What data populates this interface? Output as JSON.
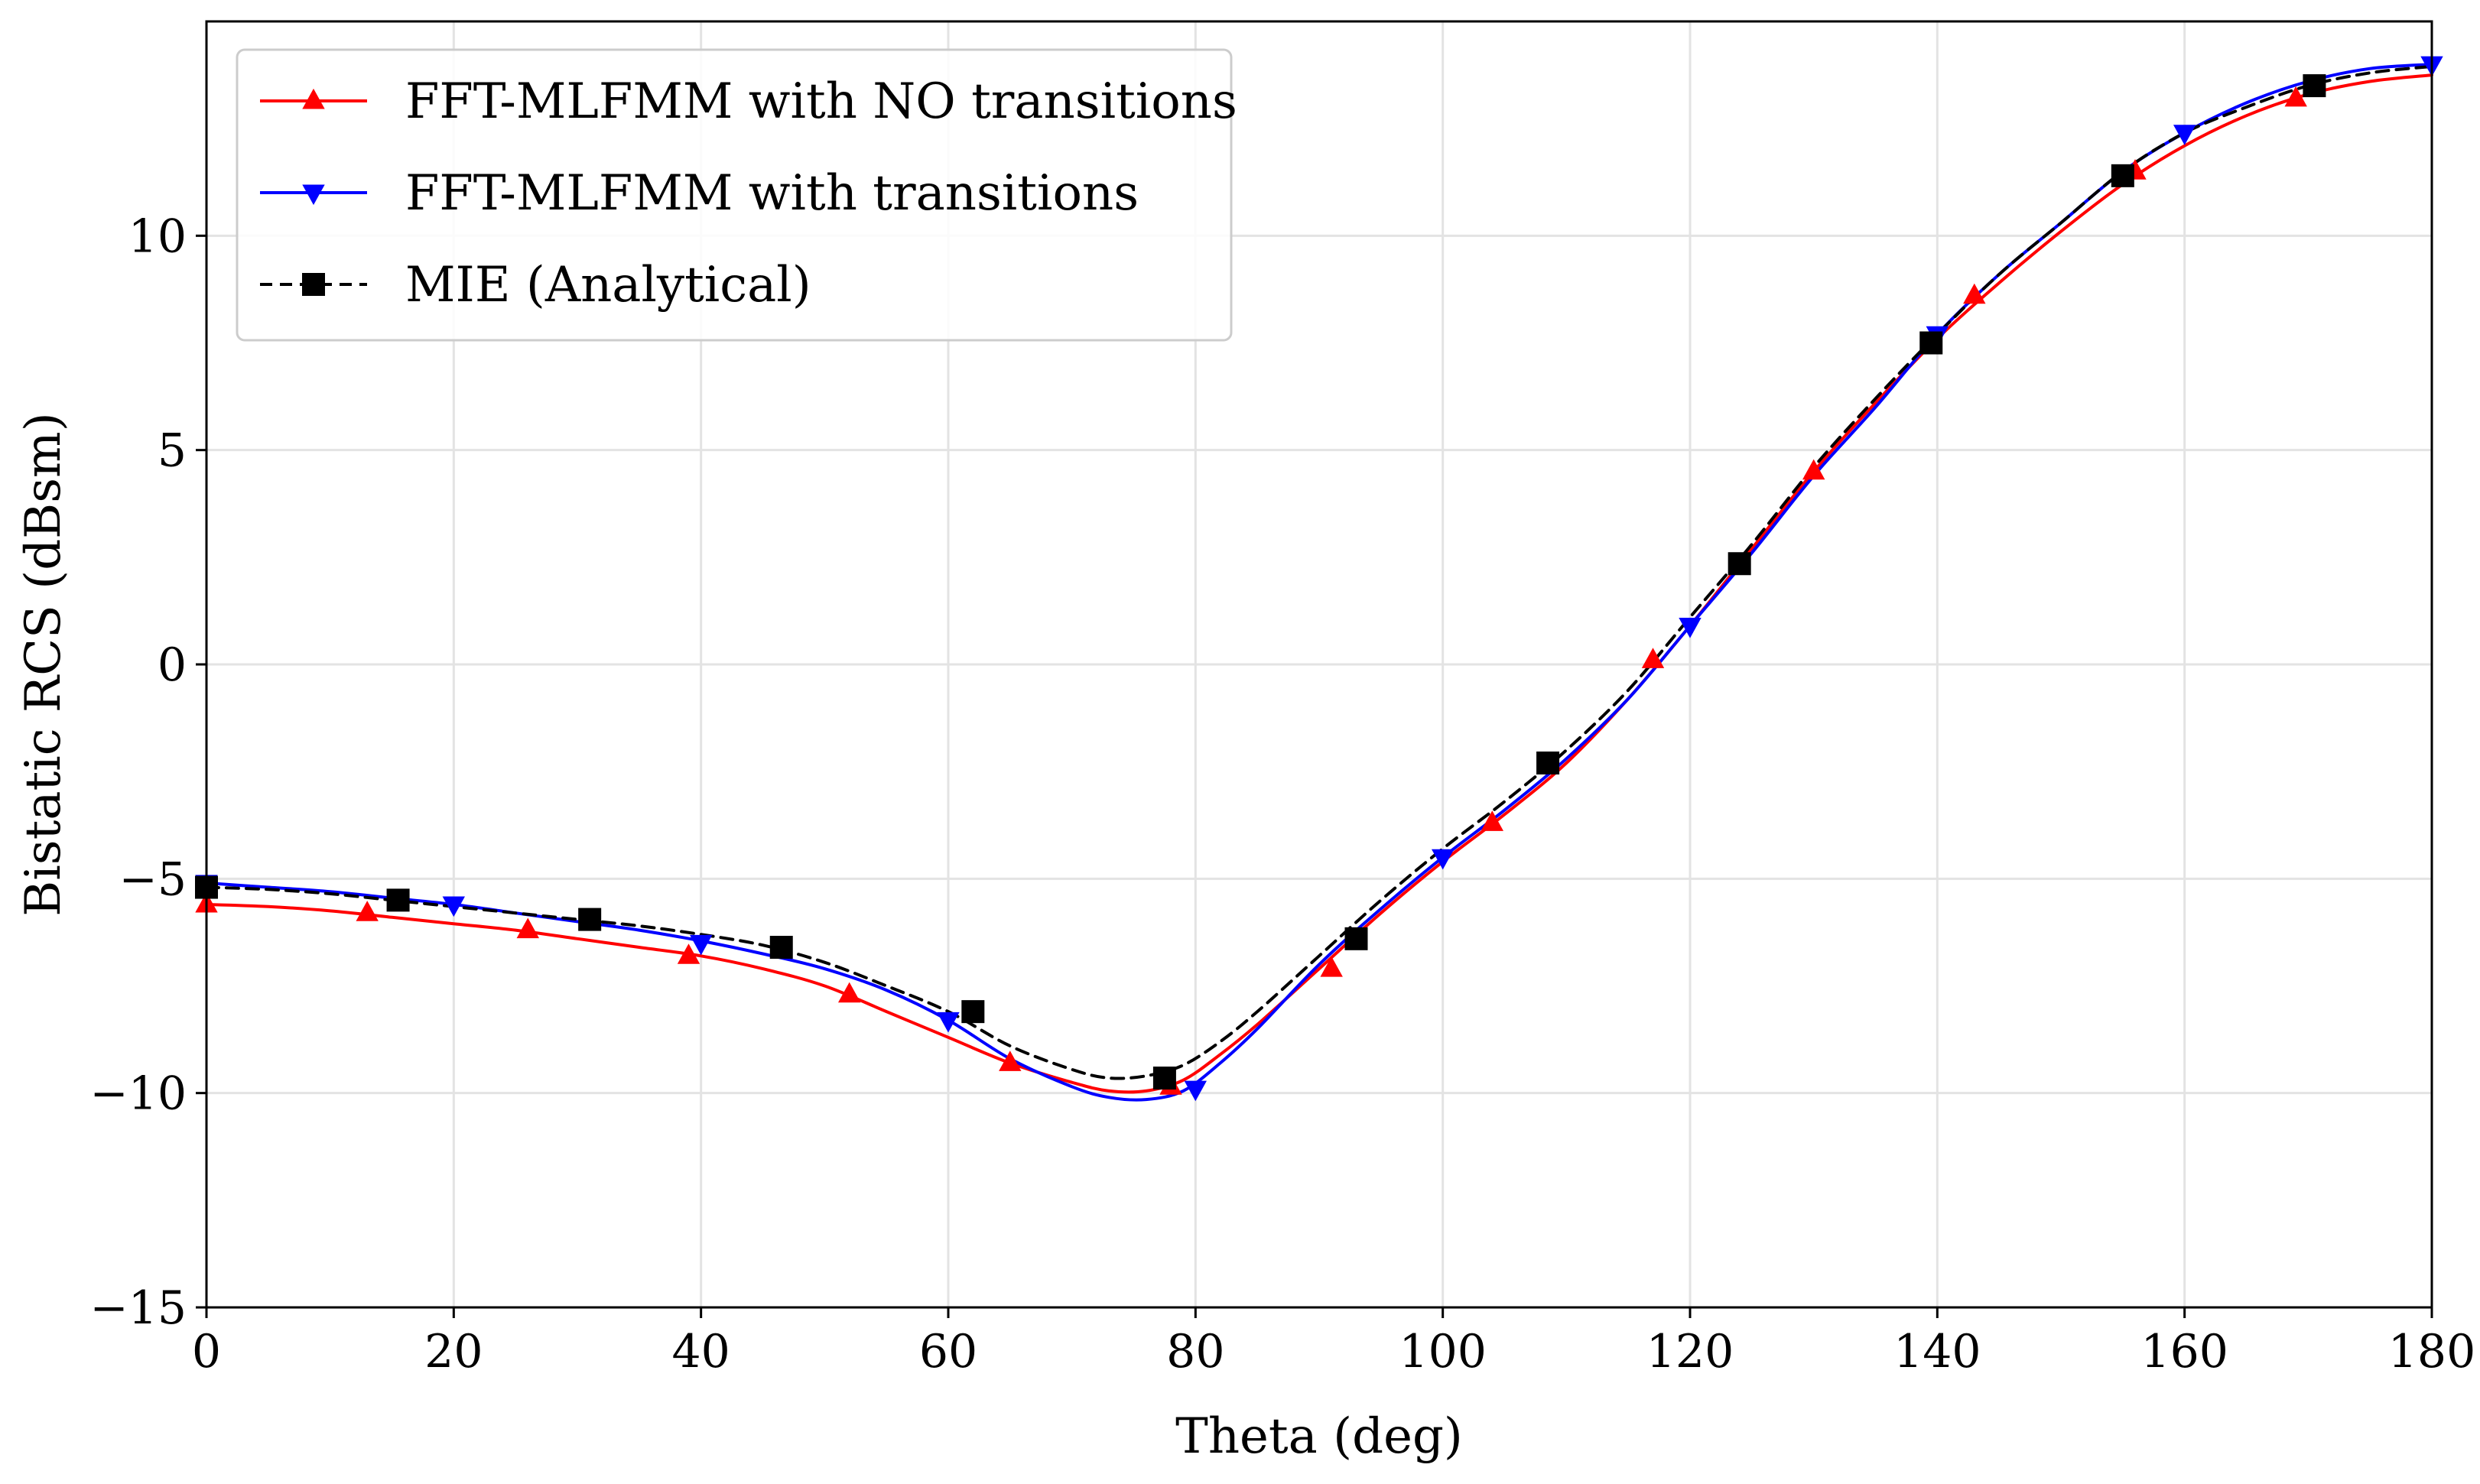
{
  "chart_data": {
    "type": "line",
    "title": "",
    "xlabel": "Theta (deg)",
    "ylabel": "Bistatic RCS (dBsm)",
    "xlim": [
      0,
      180
    ],
    "ylim": [
      -15,
      15
    ],
    "xticks": [
      0,
      20,
      40,
      60,
      80,
      100,
      120,
      140,
      160,
      180
    ],
    "xtick_labels": [
      "0",
      "20",
      "40",
      "60",
      "80",
      "100",
      "120",
      "140",
      "160",
      "180"
    ],
    "yticks": [
      -15,
      -10,
      -5,
      0,
      5,
      10
    ],
    "ytick_labels": [
      "−15",
      "−10",
      "−5",
      "0",
      "5",
      "10"
    ],
    "grid": true,
    "legend_position": "top-left",
    "series": [
      {
        "name": "FFT-MLFMM with NO transitions",
        "color": "#ff0000",
        "line_style": "solid",
        "marker": "triangle-up",
        "x": [
          0,
          5,
          10,
          15,
          20,
          25,
          30,
          35,
          40,
          45,
          50,
          55,
          60,
          65,
          70,
          73,
          76,
          79,
          82,
          85,
          90,
          95,
          100,
          105,
          110,
          115,
          120,
          125,
          130,
          135,
          140,
          145,
          150,
          155,
          160,
          165,
          170,
          175,
          180
        ],
        "y": [
          -5.6,
          -5.65,
          -5.75,
          -5.9,
          -6.05,
          -6.2,
          -6.4,
          -6.6,
          -6.8,
          -7.1,
          -7.5,
          -8.1,
          -8.7,
          -9.3,
          -9.75,
          -9.95,
          -9.95,
          -9.7,
          -9.1,
          -8.4,
          -7.1,
          -5.8,
          -4.6,
          -3.5,
          -2.3,
          -0.8,
          0.9,
          2.7,
          4.5,
          6.1,
          7.6,
          8.9,
          10.1,
          11.2,
          12.1,
          12.8,
          13.3,
          13.6,
          13.75
        ],
        "marker_x": [
          0,
          13,
          26,
          39,
          52,
          65,
          78,
          91,
          104,
          117,
          130,
          143,
          156,
          169
        ],
        "marker_y": [
          -5.6,
          -5.8,
          -6.2,
          -6.8,
          -7.7,
          -9.3,
          -9.85,
          -7.1,
          -3.7,
          0.1,
          4.5,
          8.6,
          11.5,
          13.2
        ]
      },
      {
        "name": "FFT-MLFMM with transitions",
        "color": "#0000ff",
        "line_style": "solid",
        "marker": "triangle-down",
        "x": [
          0,
          5,
          10,
          15,
          20,
          25,
          30,
          35,
          40,
          45,
          50,
          55,
          60,
          65,
          70,
          73,
          76,
          79,
          82,
          85,
          90,
          95,
          100,
          105,
          110,
          115,
          120,
          125,
          130,
          135,
          140,
          145,
          150,
          155,
          160,
          165,
          170,
          175,
          180
        ],
        "y": [
          -5.1,
          -5.2,
          -5.3,
          -5.45,
          -5.6,
          -5.8,
          -6.0,
          -6.2,
          -6.45,
          -6.75,
          -7.1,
          -7.6,
          -8.3,
          -9.2,
          -9.85,
          -10.1,
          -10.15,
          -9.95,
          -9.3,
          -8.5,
          -7.0,
          -5.7,
          -4.5,
          -3.4,
          -2.2,
          -0.8,
          0.9,
          2.6,
          4.4,
          6.0,
          7.7,
          9.1,
          10.3,
          11.5,
          12.4,
          13.1,
          13.6,
          13.9,
          14.0
        ],
        "marker_x": [
          0,
          20,
          40,
          60,
          80,
          100,
          120,
          140,
          160,
          180
        ],
        "marker_y": [
          -5.1,
          -5.6,
          -6.5,
          -8.3,
          -9.9,
          -4.5,
          0.9,
          7.7,
          12.4,
          14.0
        ]
      },
      {
        "name": "MIE (Analytical)",
        "color": "#000000",
        "line_style": "dashed",
        "marker": "square",
        "x": [
          0,
          5,
          10,
          15,
          20,
          25,
          30,
          35,
          40,
          45,
          50,
          55,
          60,
          65,
          70,
          73,
          76,
          79,
          82,
          85,
          90,
          95,
          100,
          105,
          110,
          115,
          120,
          125,
          130,
          135,
          140,
          145,
          150,
          155,
          160,
          165,
          170,
          175,
          180
        ],
        "y": [
          -5.2,
          -5.25,
          -5.35,
          -5.5,
          -5.65,
          -5.8,
          -5.95,
          -6.1,
          -6.3,
          -6.55,
          -6.95,
          -7.5,
          -8.1,
          -8.9,
          -9.45,
          -9.65,
          -9.6,
          -9.35,
          -8.8,
          -8.1,
          -6.8,
          -5.5,
          -4.3,
          -3.2,
          -2.0,
          -0.6,
          1.1,
          2.8,
          4.6,
          6.2,
          7.7,
          9.1,
          10.3,
          11.5,
          12.4,
          13.0,
          13.5,
          13.8,
          13.95
        ],
        "marker_x": [
          0,
          15.5,
          31,
          46.5,
          62,
          77.5,
          93,
          108.5,
          124,
          139.5,
          155,
          170.5
        ],
        "marker_y": [
          -5.2,
          -5.5,
          -5.95,
          -6.6,
          -8.1,
          -9.65,
          -6.4,
          -2.3,
          2.35,
          7.5,
          11.4,
          13.5
        ]
      }
    ]
  }
}
